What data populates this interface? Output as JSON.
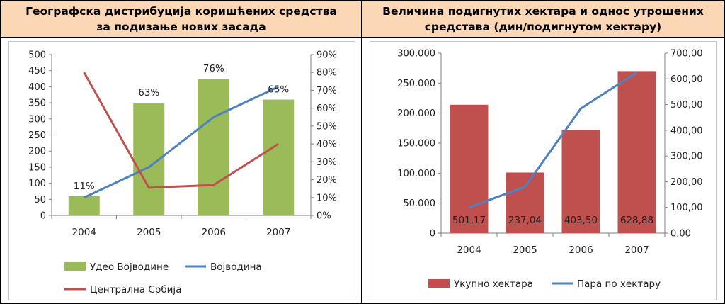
{
  "left_panel": {
    "title": "Географска дистрибуција коришћених средства за подизање нових засада"
  },
  "right_panel": {
    "title": "Величина подигнутих хектара и однос утрошених средстава (дин/подигнутом хектару)"
  },
  "chart_data": [
    {
      "type": "bar",
      "categories": [
        "2004",
        "2005",
        "2006",
        "2007"
      ],
      "y_ticks": [
        "0",
        "50",
        "100",
        "150",
        "200",
        "250",
        "300",
        "350",
        "400",
        "450",
        "500"
      ],
      "y2_ticks": [
        "0%",
        "10%",
        "20%",
        "30%",
        "40%",
        "50%",
        "60%",
        "70%",
        "80%",
        "90%"
      ],
      "ylim": [
        0,
        500
      ],
      "y2lim": [
        0,
        0.9
      ],
      "bar_series": {
        "name": "Удео Војводине",
        "values": [
          60,
          350,
          425,
          360
        ],
        "color": "#9bbb59"
      },
      "bar_labels": [
        "11%",
        "63%",
        "76%",
        "65%"
      ],
      "line_series": [
        {
          "name": "Војводина",
          "values": [
            0.1,
            0.27,
            0.55,
            0.72
          ],
          "color": "#4f81bd"
        },
        {
          "name": "Централна Србија",
          "values": [
            0.8,
            0.155,
            0.17,
            0.4
          ],
          "color": "#c0504d"
        }
      ],
      "legend_position": "bottom",
      "grid": false
    },
    {
      "type": "bar",
      "categories": [
        "2004",
        "2005",
        "2006",
        "2007"
      ],
      "y_ticks": [
        "0",
        "50.000",
        "100.000",
        "150.000",
        "200.000",
        "250.000",
        "300.000"
      ],
      "y2_ticks": [
        "0,00",
        "100,00",
        "200,00",
        "300,00",
        "400,00",
        "500,00",
        "600,00",
        "700,00"
      ],
      "ylim": [
        0,
        300000
      ],
      "y2lim": [
        0,
        700
      ],
      "bar_series": {
        "name": "Укупно хектара",
        "values": [
          214000,
          101000,
          172000,
          270000
        ],
        "color": "#c0504d"
      },
      "bar_labels": [
        "501,17",
        "237,04",
        "403,50",
        "628,88"
      ],
      "line_series": [
        {
          "name": "Пара по хектару",
          "values": [
            100,
            180,
            485,
            625
          ],
          "color": "#4f81bd"
        }
      ],
      "legend_position": "bottom",
      "grid": false
    }
  ]
}
